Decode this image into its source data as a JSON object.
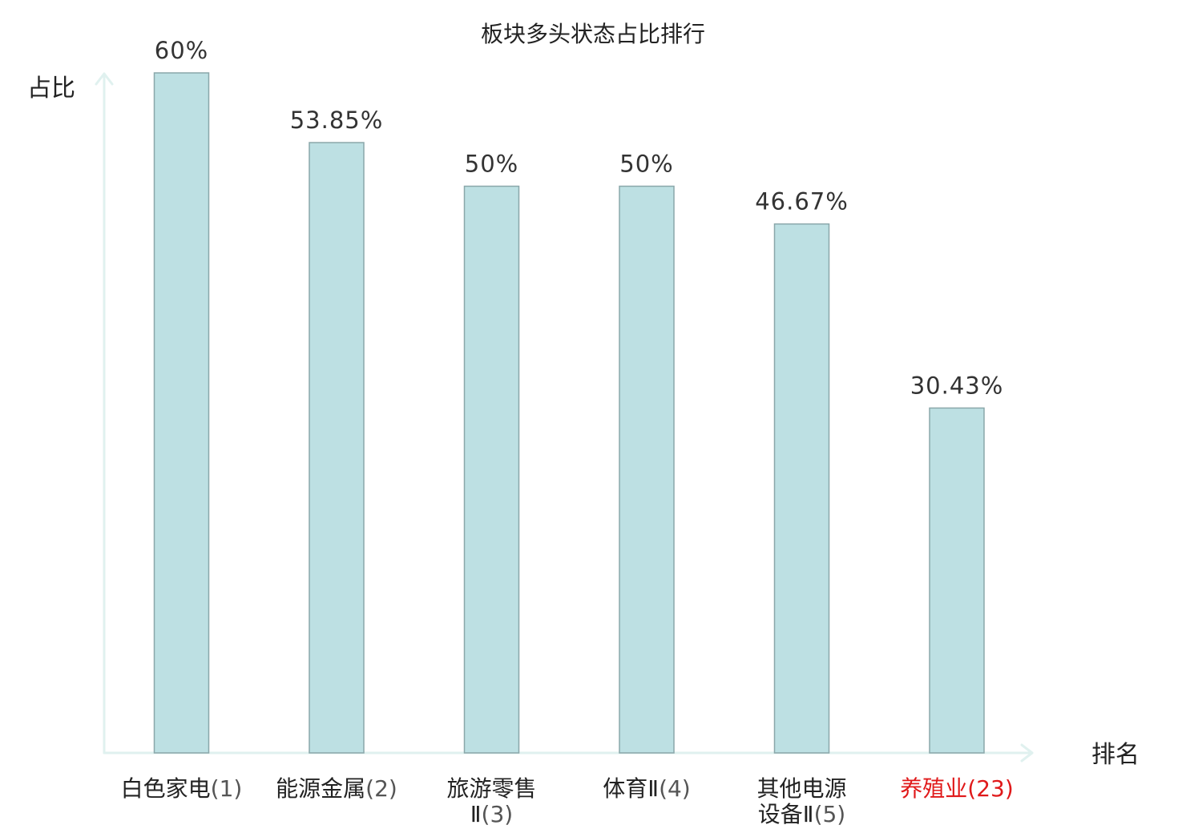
{
  "chart_data": {
    "type": "bar",
    "title": "板块多头状态占比排行",
    "ylabel": "占比",
    "xlabel": "排名",
    "ylim": [
      0,
      60
    ],
    "grid": false,
    "categories": [
      {
        "name": "白色家电",
        "rank": "(1)",
        "highlight": false
      },
      {
        "name": "能源金属",
        "rank": "(2)",
        "highlight": false
      },
      {
        "name": "旅游零售Ⅱ",
        "rank": "(3)",
        "highlight": false
      },
      {
        "name": "体育Ⅱ",
        "rank": "(4)",
        "highlight": false
      },
      {
        "name": "其他电源设备Ⅱ",
        "rank": "(5)",
        "highlight": false
      },
      {
        "name": "养殖业",
        "rank": "(23)",
        "highlight": true
      }
    ],
    "values": [
      60,
      53.85,
      50,
      50,
      46.67,
      30.43
    ],
    "value_labels": [
      "60%",
      "53.85%",
      "50%",
      "50%",
      "46.67%",
      "30.43%"
    ],
    "colors": {
      "bar_fill": "#bde0e3",
      "bar_stroke": "#8aa7aa",
      "axis": "#e0f1ef",
      "highlight_text": "#e0191a",
      "normal_text": "#222222",
      "rank_text": "#555555"
    }
  }
}
